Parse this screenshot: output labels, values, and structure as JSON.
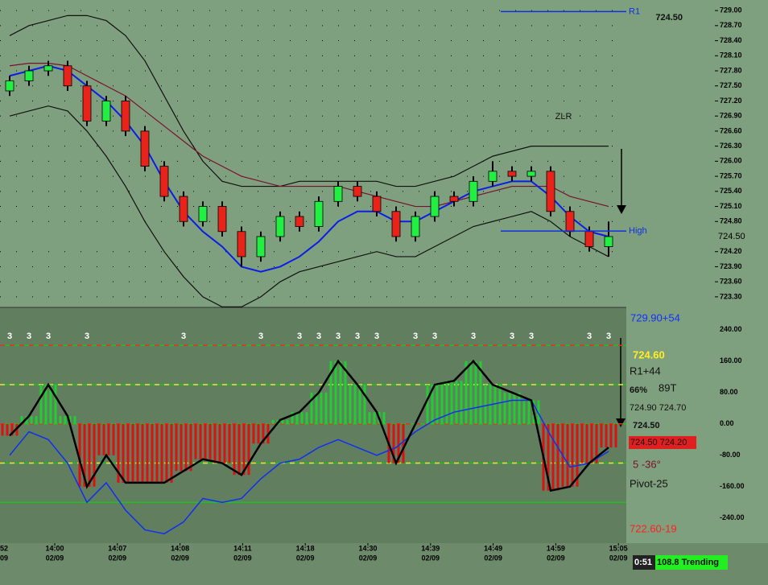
{
  "chart_data": {
    "type": "candlestick",
    "price_panel": {
      "ylim": [
        723.09,
        729.21
      ],
      "yticks": [
        {
          "value": 729,
          "label": "729.00"
        },
        {
          "value": 728.7,
          "label": "728.70"
        },
        {
          "value": 728.4,
          "label": "728.40"
        },
        {
          "value": 728.1,
          "label": "728.10"
        },
        {
          "value": 727.8,
          "label": "727.80"
        },
        {
          "value": 727.5,
          "label": "727.50"
        },
        {
          "value": 727.2,
          "label": "727.20"
        },
        {
          "value": 726.9,
          "label": "726.90"
        },
        {
          "value": 726.6,
          "label": "726.60"
        },
        {
          "value": 726.3,
          "label": "726.30"
        },
        {
          "value": 726,
          "label": "726.00"
        },
        {
          "value": 725.7,
          "label": "725.70"
        },
        {
          "value": 725.4,
          "label": "725.40"
        },
        {
          "value": 725.1,
          "label": "725.10"
        },
        {
          "value": 724.8,
          "label": "724.80"
        },
        {
          "value": 724.2,
          "label": "724.20"
        },
        {
          "value": 723.9,
          "label": "723.90"
        },
        {
          "value": 723.6,
          "label": "723.60"
        },
        {
          "value": 723.3,
          "label": "723.30"
        }
      ],
      "grid": true,
      "open": [
        727.4,
        727.6,
        727.8,
        727.9,
        727.5,
        726.8,
        727.2,
        726.6,
        725.9,
        725.3,
        724.8,
        725.1,
        724.6,
        724.1,
        724.5,
        724.9,
        724.7,
        725.2,
        725.5,
        725.3,
        725.0,
        724.5,
        724.9,
        725.3,
        725.2,
        725.6,
        725.8,
        725.7,
        725.8,
        725.0,
        724.6,
        724.3
      ],
      "high": [
        727.7,
        727.9,
        728.0,
        728.0,
        727.6,
        727.3,
        727.3,
        726.7,
        726.0,
        725.4,
        725.2,
        725.2,
        724.7,
        724.6,
        725.0,
        725.0,
        725.3,
        725.6,
        725.6,
        725.4,
        725.1,
        725.0,
        725.4,
        725.4,
        725.7,
        726.0,
        725.9,
        725.9,
        725.9,
        725.1,
        724.7,
        724.8
      ],
      "low": [
        727.3,
        727.5,
        727.7,
        727.4,
        726.7,
        726.7,
        726.5,
        725.8,
        725.2,
        724.7,
        724.7,
        724.5,
        723.9,
        724.0,
        724.4,
        724.6,
        724.6,
        725.1,
        725.2,
        724.9,
        724.4,
        724.4,
        724.8,
        725.1,
        725.1,
        725.5,
        725.6,
        725.6,
        724.9,
        724.5,
        724.2,
        724.1
      ],
      "close": [
        727.6,
        727.8,
        727.9,
        727.5,
        726.8,
        727.2,
        726.6,
        725.9,
        725.3,
        724.8,
        725.1,
        724.6,
        724.1,
        724.5,
        724.9,
        724.7,
        725.2,
        725.5,
        725.3,
        725.0,
        724.5,
        724.9,
        725.3,
        725.2,
        725.6,
        725.8,
        725.7,
        725.8,
        725.0,
        724.6,
        724.3,
        724.5
      ],
      "up_color": "#22ee44",
      "down_color": "#e8231c",
      "series": [
        {
          "color": "#111111",
          "values": [
            728.5,
            728.7,
            728.8,
            728.9,
            728.9,
            728.8,
            728.5,
            728.0,
            727.3,
            726.6,
            726.0,
            725.6,
            725.5,
            725.5,
            725.5,
            725.6,
            725.6,
            725.6,
            725.6,
            725.6,
            725.5,
            725.5,
            725.6,
            725.7,
            725.9,
            726.1,
            726.2,
            726.3,
            726.3,
            726.3,
            726.3,
            726.3
          ]
        },
        {
          "color": "#111111",
          "values": [
            726.9,
            727.0,
            727.1,
            727.0,
            726.6,
            726.1,
            725.5,
            724.8,
            724.2,
            723.7,
            723.3,
            723.1,
            723.1,
            723.3,
            723.6,
            723.8,
            723.9,
            724.0,
            724.1,
            724.2,
            724.1,
            724.1,
            724.3,
            724.5,
            724.7,
            724.8,
            724.9,
            725.0,
            724.8,
            724.5,
            724.3,
            724.1
          ]
        },
        {
          "color": "#7a1030",
          "values": [
            727.9,
            727.95,
            727.95,
            727.9,
            727.7,
            727.5,
            727.3,
            727.0,
            726.7,
            726.4,
            726.1,
            725.9,
            725.7,
            725.6,
            725.5,
            725.5,
            725.5,
            725.5,
            725.4,
            725.3,
            725.2,
            725.1,
            725.1,
            725.2,
            725.3,
            725.4,
            725.5,
            725.5,
            725.5,
            725.3,
            725.2,
            725.1
          ]
        },
        {
          "color": "#0a1ee8",
          "values": [
            727.7,
            727.8,
            727.9,
            727.8,
            727.5,
            727.2,
            726.8,
            726.3,
            725.6,
            725.0,
            724.6,
            724.3,
            723.9,
            723.8,
            723.9,
            724.1,
            724.4,
            724.8,
            725.0,
            725.0,
            724.8,
            724.8,
            725.0,
            725.2,
            725.4,
            725.5,
            725.6,
            725.6,
            725.3,
            724.9,
            724.6,
            724.5
          ]
        }
      ],
      "levels": [
        {
          "label": "R1",
          "value": 728.98,
          "color": "#1030e0"
        },
        {
          "label": "High",
          "value": 724.61,
          "color": "#1030e0"
        }
      ],
      "annotation": "ZLR",
      "last_price": {
        "value": 724.5,
        "label": "724.50"
      }
    },
    "osc_panel": {
      "ylim": [
        -304,
        297
      ],
      "yticks": [
        {
          "value": 240,
          "label": "240.00"
        },
        {
          "value": 160,
          "label": "160.00"
        },
        {
          "value": 80,
          "label": "80.00"
        },
        {
          "value": 0,
          "label": "0.00"
        },
        {
          "value": -80,
          "label": "-80.00"
        },
        {
          "value": -160,
          "label": "-160.00"
        },
        {
          "value": -240,
          "label": "-240.00"
        }
      ],
      "levels": [
        {
          "value": 200,
          "color": "#e03030"
        },
        {
          "value": 100,
          "color": "#f0e040"
        },
        {
          "value": 0,
          "color": "#e03030"
        },
        {
          "value": -100,
          "color": "#f0e040"
        },
        {
          "value": -200,
          "color": "#20c020"
        }
      ],
      "up_color": "#22cc33",
      "down_color": "#dd1111",
      "cci": [
        -30,
        20,
        100,
        20,
        -160,
        -80,
        -150,
        -150,
        -150,
        -120,
        -90,
        -100,
        -130,
        -50,
        10,
        30,
        80,
        160,
        100,
        30,
        -100,
        0,
        100,
        110,
        160,
        100,
        80,
        60,
        -170,
        -160,
        -100,
        -60
      ],
      "signal": {
        "color": "#1030f0",
        "values": [
          -80,
          -20,
          -40,
          -100,
          -200,
          -150,
          -220,
          -270,
          -280,
          -250,
          -190,
          -200,
          -190,
          -140,
          -100,
          -90,
          -60,
          -40,
          -60,
          -80,
          -60,
          -20,
          10,
          30,
          40,
          50,
          60,
          60,
          -30,
          -110,
          -100,
          -70
        ]
      },
      "signal_labels": [
        "3",
        "3",
        "3",
        null,
        "3",
        null,
        null,
        null,
        null,
        "3",
        null,
        null,
        null,
        "3",
        null,
        "3",
        "3",
        "3",
        "3",
        "3",
        null,
        "3",
        "3",
        null,
        "3",
        null,
        "3",
        "3",
        null,
        null,
        "3",
        "3"
      ]
    },
    "info_panel": {
      "top": "729.90+54",
      "price": "724.60",
      "r1": "R1+44",
      "pct": "66%",
      "ticks": "89T",
      "pair1": "724.90 724.70",
      "last": "724.50",
      "pair2": "724.50 724.20",
      "angle": "5  -36°",
      "pivot": "Pivot-25",
      "bottom": "722.60-19"
    },
    "time_axis": {
      "times": [
        "52",
        "14:00",
        "14:07",
        "14:08",
        "14:11",
        "14:18",
        "14:30",
        "14:39",
        "14:49",
        "14:59",
        "15:05"
      ],
      "dates": [
        "09",
        "02/09",
        "02/09",
        "02/09",
        "02/09",
        "02/09",
        "02/09",
        "02/09",
        "02/09",
        "02/09",
        "02/09"
      ]
    },
    "status": {
      "clock": "0:51",
      "state": "108.8 Trending"
    }
  }
}
